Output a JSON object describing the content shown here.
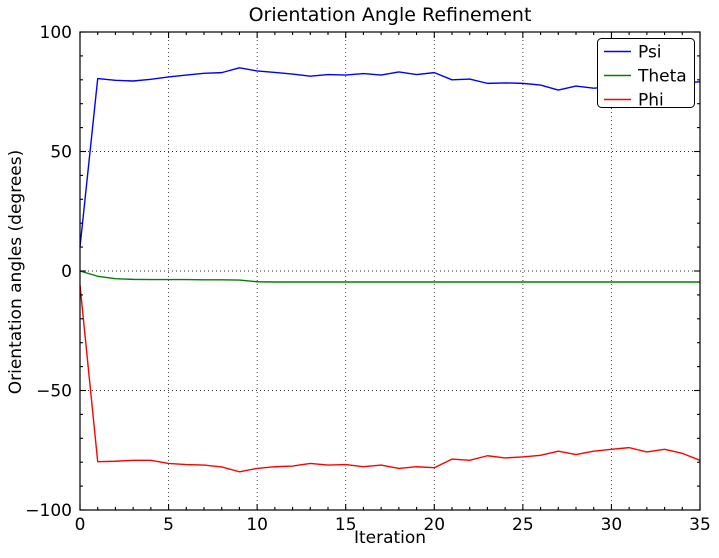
{
  "figure_background": "#ffffff",
  "chart_data": {
    "type": "line",
    "title": "Orientation Angle Refinement",
    "xlabel": "Iteration",
    "ylabel": "Orientation angles (degrees)",
    "xlim": [
      0,
      35
    ],
    "ylim": [
      -100,
      100
    ],
    "xticks": [
      0,
      5,
      10,
      15,
      20,
      25,
      30,
      35
    ],
    "yticks": [
      -100,
      -50,
      0,
      50,
      100
    ],
    "x_minor_step": 1,
    "y_minor_step": 10,
    "grid": "dotted",
    "grid_color": "#000000",
    "axis_color": "#000000",
    "legend": {
      "position": "upper right"
    },
    "x": [
      0,
      1,
      2,
      3,
      4,
      5,
      6,
      7,
      8,
      9,
      10,
      11,
      12,
      13,
      14,
      15,
      16,
      17,
      18,
      19,
      20,
      21,
      22,
      23,
      24,
      25,
      26,
      27,
      28,
      29,
      30,
      31,
      32,
      33,
      34,
      35
    ],
    "series": [
      {
        "name": "Psi",
        "color": "#0000ff",
        "values": [
          10,
          80.5,
          79.8,
          79.5,
          80.2,
          81.2,
          82,
          82.7,
          83,
          85,
          83.7,
          83.1,
          82.4,
          81.5,
          82.2,
          82,
          82.6,
          82,
          83.3,
          82.2,
          83,
          80,
          80.3,
          78.5,
          78.7,
          78.5,
          77.8,
          75.7,
          77.4,
          76.5,
          77,
          77.4,
          77.8,
          78.1,
          78.5,
          79.2
        ]
      },
      {
        "name": "Theta",
        "color": "#008000",
        "values": [
          0,
          -2.2,
          -3.2,
          -3.5,
          -3.6,
          -3.6,
          -3.6,
          -3.7,
          -3.7,
          -3.8,
          -4.5,
          -4.6,
          -4.6,
          -4.6,
          -4.6,
          -4.6,
          -4.6,
          -4.6,
          -4.6,
          -4.6,
          -4.6,
          -4.6,
          -4.6,
          -4.6,
          -4.6,
          -4.6,
          -4.6,
          -4.6,
          -4.6,
          -4.6,
          -4.6,
          -4.6,
          -4.6,
          -4.6,
          -4.6,
          -4.6
        ]
      },
      {
        "name": "Phi",
        "color": "#ff0000",
        "values": [
          -6,
          -79.8,
          -79.6,
          -79.2,
          -79.2,
          -80.5,
          -81,
          -81.2,
          -82,
          -84,
          -82.6,
          -81.9,
          -81.6,
          -80.5,
          -81.2,
          -81,
          -81.9,
          -81.2,
          -82.6,
          -81.9,
          -82.3,
          -78.7,
          -79.2,
          -77.3,
          -78.2,
          -77.8,
          -77.1,
          -75.4,
          -76.8,
          -75.4,
          -74.6,
          -73.9,
          -75.7,
          -74.6,
          -76.3,
          -79.2
        ]
      }
    ]
  }
}
